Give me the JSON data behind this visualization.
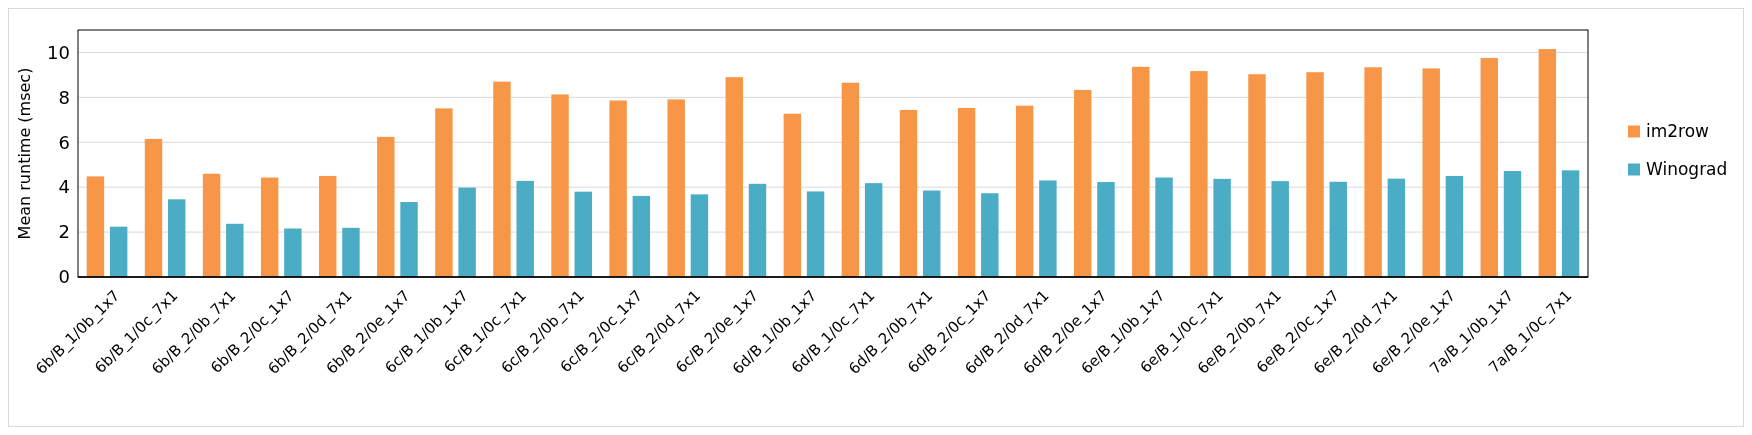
{
  "chart_data": {
    "type": "bar",
    "ylabel": "Mean runtime (msec)",
    "categories": [
      "6b/B_1/0b_1x7",
      "6b/B_1/0c_7x1",
      "6b/B_2/0b_7x1",
      "6b/B_2/0c_1x7",
      "6b/B_2/0d_7x1",
      "6b/B_2/0e_1x7",
      "6c/B_1/0b_1x7",
      "6c/B_1/0c_7x1",
      "6c/B_2/0b_7x1",
      "6c/B_2/0c_1x7",
      "6c/B_2/0d_7x1",
      "6c/B_2/0e_1x7",
      "6d/B_1/0b_1x7",
      "6d/B_1/0c_7x1",
      "6d/B_2/0b_7x1",
      "6d/B_2/0c_1x7",
      "6d/B_2/0d_7x1",
      "6d/B_2/0e_1x7",
      "6e/B_1/0b_1x7",
      "6e/B_1/0c_7x1",
      "6e/B_2/0b_7x1",
      "6e/B_2/0c_1x7",
      "6e/B_2/0d_7x1",
      "6e/B_2/0e_1x7",
      "7a/B_1/0b_1x7",
      "7a/B_1/0c_7x1"
    ],
    "series": [
      {
        "name": "im2row",
        "color": "#f79646",
        "values": [
          4.48,
          6.15,
          4.6,
          4.43,
          4.5,
          6.24,
          7.51,
          8.7,
          8.13,
          7.86,
          7.91,
          8.9,
          7.27,
          8.65,
          7.44,
          7.53,
          7.63,
          8.33,
          9.36,
          9.17,
          9.03,
          9.12,
          9.34,
          9.29,
          9.75,
          10.15
        ]
      },
      {
        "name": "Winograd",
        "color": "#4bacc6",
        "values": [
          2.24,
          3.46,
          2.37,
          2.16,
          2.19,
          3.34,
          3.98,
          4.28,
          3.8,
          3.61,
          3.68,
          4.15,
          3.81,
          4.18,
          3.85,
          3.73,
          4.3,
          4.23,
          4.43,
          4.37,
          4.27,
          4.24,
          4.38,
          4.5,
          4.72,
          4.75
        ]
      }
    ],
    "ylim": [
      0,
      11
    ],
    "yticks": [
      0,
      2,
      4,
      6,
      8,
      10
    ],
    "grid": "y",
    "legend": "right"
  }
}
